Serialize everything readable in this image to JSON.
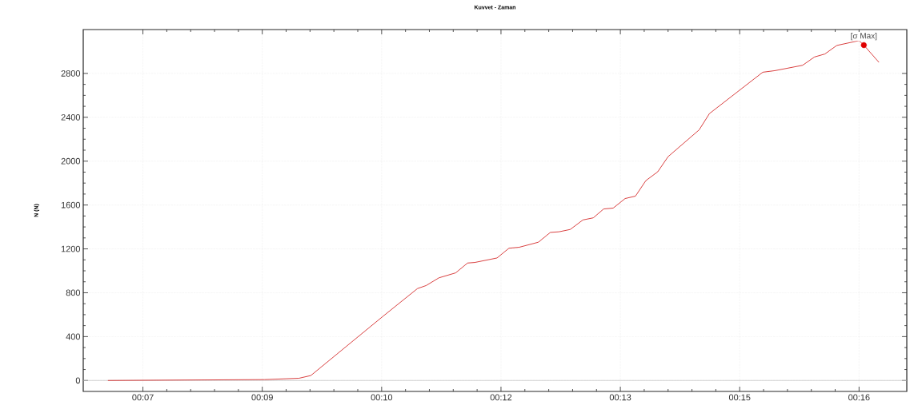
{
  "chart_data": {
    "type": "line",
    "title": "Kuvvet - Zaman",
    "ylabel": "N (N)",
    "xlim": [
      6.25,
      16.6
    ],
    "ylim": [
      -100,
      3200
    ],
    "xticks": [
      {
        "value": 7,
        "label": "00:07"
      },
      {
        "value": 8.5,
        "label": "00:09"
      },
      {
        "value": 10,
        "label": "00:10"
      },
      {
        "value": 11.5,
        "label": "00:12"
      },
      {
        "value": 13,
        "label": "00:13"
      },
      {
        "value": 14.5,
        "label": "00:15"
      },
      {
        "value": 16,
        "label": "00:16"
      }
    ],
    "yticks": [
      0,
      400,
      800,
      1200,
      1600,
      2000,
      2400,
      2800
    ],
    "grid": true,
    "marker": "none",
    "line_style": "solid",
    "ref_lines": [
      {
        "axis": "y",
        "value": 0,
        "color": "#c8c8c8"
      }
    ],
    "annotations": [
      {
        "text": "[σ Max]",
        "x": 16.06,
        "y": 3058
      }
    ],
    "series": [
      {
        "color": "#d42a2a",
        "x": [
          6.56,
          8.53,
          8.96,
          9.11,
          10.02,
          10.45,
          10.56,
          10.72,
          10.93,
          11.08,
          11.17,
          11.45,
          11.6,
          11.73,
          11.97,
          12.12,
          12.23,
          12.37,
          12.53,
          12.66,
          12.79,
          12.91,
          13.06,
          13.19,
          13.32,
          13.47,
          13.6,
          13.99,
          14.12,
          14.79,
          14.94,
          15.29,
          15.44,
          15.57,
          15.72,
          16.0,
          16.06,
          16.25
        ],
        "values": [
          0,
          8,
          20,
          45,
          587,
          838,
          866,
          936,
          981,
          1071,
          1076,
          1117,
          1206,
          1215,
          1261,
          1350,
          1356,
          1377,
          1464,
          1483,
          1564,
          1572,
          1659,
          1681,
          1822,
          1903,
          2041,
          2285,
          2434,
          2811,
          2825,
          2874,
          2950,
          2977,
          3055,
          3099,
          3058,
          2901
        ]
      },
      {
        "type": "scatter",
        "color": "#e00000",
        "x": [
          16.06
        ],
        "values": [
          3058
        ]
      }
    ]
  }
}
